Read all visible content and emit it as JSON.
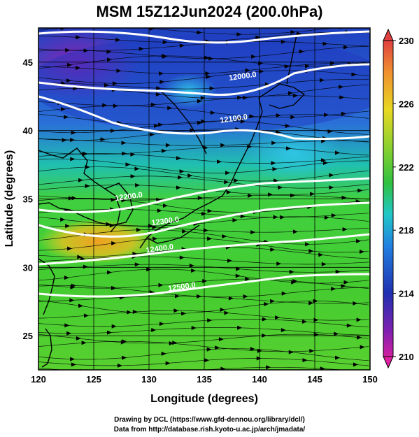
{
  "title": "MSM 15Z12Jun2024 (200.0hPa)",
  "credits": {
    "line1": "Drawing by DCL (https://www.gfd-dennou.org/library/dcl/)",
    "line2": "Data from http://database.rish.kyoto-u.ac.jp/arch/jmadata/"
  },
  "map": {
    "xlabel": "Longitude (degrees)",
    "ylabel": "Latitude  (degrees)",
    "xlim": [
      120,
      150
    ],
    "ylim": [
      22.5,
      47.5
    ],
    "xticks": [
      120,
      125,
      130,
      135,
      140,
      145,
      150
    ],
    "yticks": [
      25,
      30,
      35,
      40,
      45
    ],
    "contour_labels": [
      {
        "text": "12000.0",
        "lon": 138.5,
        "lat": 43.8
      },
      {
        "text": "12100.0",
        "lon": 137.7,
        "lat": 40.7
      },
      {
        "text": "12200.0",
        "lon": 128.2,
        "lat": 35.0
      },
      {
        "text": "12300.0",
        "lon": 131.5,
        "lat": 33.2
      },
      {
        "text": "12400.0",
        "lon": 131.0,
        "lat": 31.2
      },
      {
        "text": "12500.0",
        "lon": 133.0,
        "lat": 28.4
      }
    ]
  },
  "colorbar": {
    "tick_labels": [
      "230",
      "226",
      "222",
      "218",
      "214",
      "210"
    ],
    "tick_values": [
      230,
      226,
      222,
      218,
      214,
      210
    ],
    "range": [
      210,
      230
    ]
  },
  "colors": {
    "purple": "#8a1fb0",
    "blue": "#1e2fb8",
    "cyan": "#18c8e0",
    "green": "#30c830",
    "yellow": "#e0d820",
    "orange": "#f0a020",
    "red": "#e03030",
    "contour": "#ffffff",
    "streamline": "#000000"
  }
}
